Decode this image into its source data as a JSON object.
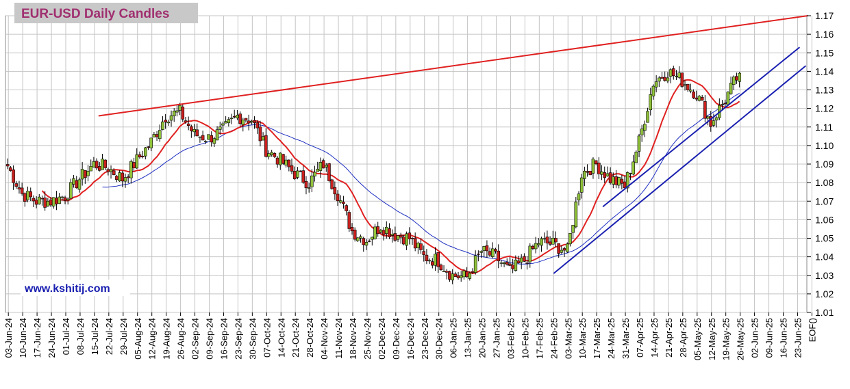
{
  "chart_data": {
    "type": "candlestick",
    "title": "EUR-USD Daily  Candles",
    "watermark": "www.kshitij.com",
    "x_tick_labels": [
      "03-Jun-24",
      "10-Jun-24",
      "17-Jun-24",
      "24-Jun-24",
      "01-Jul-24",
      "08-Jul-24",
      "15-Jul-24",
      "22-Jul-24",
      "29-Jul-24",
      "05-Aug-24",
      "12-Aug-24",
      "19-Aug-24",
      "26-Aug-24",
      "02-Sep-24",
      "09-Sep-24",
      "16-Sep-24",
      "23-Sep-24",
      "30-Sep-24",
      "07-Oct-24",
      "14-Oct-24",
      "21-Oct-24",
      "28-Oct-24",
      "04-Nov-24",
      "11-Nov-24",
      "18-Nov-24",
      "25-Nov-24",
      "02-Dec-24",
      "09-Dec-24",
      "16-Dec-24",
      "23-Dec-24",
      "30-Dec-24",
      "06-Jan-25",
      "13-Jan-25",
      "20-Jan-25",
      "27-Jan-25",
      "03-Feb-25",
      "10-Feb-25",
      "17-Feb-25",
      "24-Feb-25",
      "03-Mar-25",
      "10-Mar-25",
      "17-Mar-25",
      "24-Mar-25",
      "31-Mar-25",
      "07-Apr-25",
      "14-Apr-25",
      "21-Apr-25",
      "28-Apr-25",
      "05-May-25",
      "12-May-25",
      "19-May-25",
      "26-May-25",
      "02-Jun-25",
      "09-Jun-25",
      "16-Jun-25",
      "23-Jun-25",
      "EOF()"
    ],
    "ylim": [
      1.01,
      1.17
    ],
    "y_ticks": [
      "1.01",
      "1.02",
      "1.03",
      "1.04",
      "1.05",
      "1.06",
      "1.07",
      "1.08",
      "1.09",
      "1.10",
      "1.11",
      "1.12",
      "1.13",
      "1.14",
      "1.15",
      "1.16",
      "1.17"
    ],
    "grid": true,
    "weekly_closes": [
      1.089,
      1.074,
      1.07,
      1.07,
      1.073,
      1.082,
      1.09,
      1.088,
      1.082,
      1.092,
      1.102,
      1.116,
      1.118,
      1.106,
      1.104,
      1.108,
      1.116,
      1.114,
      1.098,
      1.092,
      1.085,
      1.08,
      1.09,
      1.074,
      1.054,
      1.049,
      1.057,
      1.052,
      1.05,
      1.04,
      1.038,
      1.03,
      1.029,
      1.043,
      1.04,
      1.032,
      1.038,
      1.048,
      1.047,
      1.043,
      1.085,
      1.09,
      1.082,
      1.078,
      1.102,
      1.134,
      1.14,
      1.135,
      1.128,
      1.112,
      1.125,
      1.139
    ],
    "colors": {
      "up": "#90c23a",
      "down": "#c8201e",
      "ma_fast": "#e02020",
      "ma_slow": "#2030c0",
      "resistance": "#e02020",
      "support": "#1a20b0",
      "title_bg": "#c8c8c8",
      "title_fg": "#a03070",
      "watermark_fg": "#1a20b0"
    },
    "lines": [
      {
        "name": "resistance",
        "from": [
          "17-Jul-24",
          1.116
        ],
        "to": [
          "28-Jun-25",
          1.17
        ]
      },
      {
        "name": "support-1",
        "from": [
          "24-Feb-25",
          1.031
        ],
        "to": [
          "27-Jun-25",
          1.143
        ]
      },
      {
        "name": "support-2",
        "from": [
          "20-Mar-25",
          1.067
        ],
        "to": [
          "24-Jun-25",
          1.153
        ]
      }
    ]
  }
}
